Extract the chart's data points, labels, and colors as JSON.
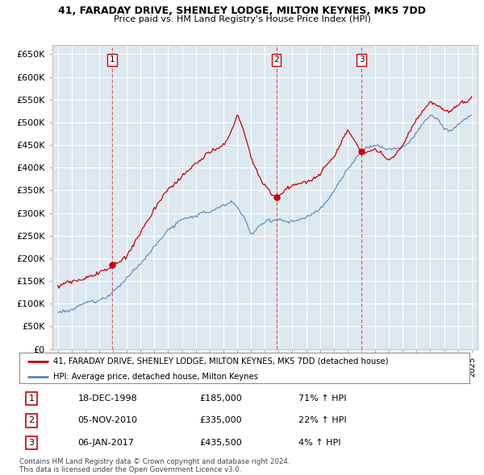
{
  "title1": "41, FARADAY DRIVE, SHENLEY LODGE, MILTON KEYNES, MK5 7DD",
  "title2": "Price paid vs. HM Land Registry's House Price Index (HPI)",
  "ylim": [
    0,
    670000
  ],
  "yticks": [
    0,
    50000,
    100000,
    150000,
    200000,
    250000,
    300000,
    350000,
    400000,
    450000,
    500000,
    550000,
    600000,
    650000
  ],
  "ytick_labels": [
    "£0",
    "£50K",
    "£100K",
    "£150K",
    "£200K",
    "£250K",
    "£300K",
    "£350K",
    "£400K",
    "£450K",
    "£500K",
    "£550K",
    "£600K",
    "£650K"
  ],
  "sale_dates": [
    1998.96,
    2010.84,
    2017.02
  ],
  "sale_prices": [
    185000,
    335000,
    435500
  ],
  "sale_labels": [
    "1",
    "2",
    "3"
  ],
  "red_line_color": "#cc0000",
  "blue_line_color": "#5588bb",
  "chart_bg_color": "#dde8f0",
  "grid_color": "#ffffff",
  "background_color": "#ffffff",
  "legend_entries": [
    "41, FARADAY DRIVE, SHENLEY LODGE, MILTON KEYNES, MK5 7DD (detached house)",
    "HPI: Average price, detached house, Milton Keynes"
  ],
  "table_data": [
    [
      "1",
      "18-DEC-1998",
      "£185,000",
      "71% ↑ HPI"
    ],
    [
      "2",
      "05-NOV-2010",
      "£335,000",
      "22% ↑ HPI"
    ],
    [
      "3",
      "06-JAN-2017",
      "£435,500",
      "4% ↑ HPI"
    ]
  ],
  "footnote1": "Contains HM Land Registry data © Crown copyright and database right 2024.",
  "footnote2": "This data is licensed under the Open Government Licence v3.0.",
  "dashed_line_color": "#cc0000",
  "dashed_line_alpha": 0.6
}
